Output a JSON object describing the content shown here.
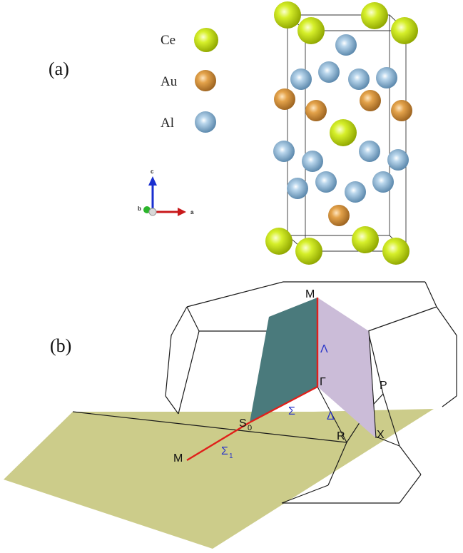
{
  "panel_a": {
    "label": "(a)",
    "legend": [
      {
        "element": "Ce",
        "color": "#b5d400"
      },
      {
        "element": "Au",
        "color": "#d4913a"
      },
      {
        "element": "Al",
        "color": "#7aa9cf"
      }
    ],
    "axes": {
      "c": "c",
      "b": "b",
      "a": "a"
    }
  },
  "panel_b": {
    "label": "(b)",
    "points": {
      "M_top": "M",
      "Gamma": "Γ",
      "P": "P",
      "S0": "S",
      "S0_sub": "0",
      "R": "R",
      "X": "X",
      "M_bottom": "M"
    },
    "lines": {
      "Lambda": "Λ",
      "Sigma": "Σ",
      "Delta": "Δ",
      "Sigma1": "Σ",
      "Sigma1_sub": "1"
    },
    "colors": {
      "plane_horizontal": "#cccc8a",
      "plane_teal": "#4a7a7c",
      "plane_lilac": "#cbbcd8",
      "path_line": "#e0201a",
      "greek_label": "#2a36c8"
    }
  }
}
